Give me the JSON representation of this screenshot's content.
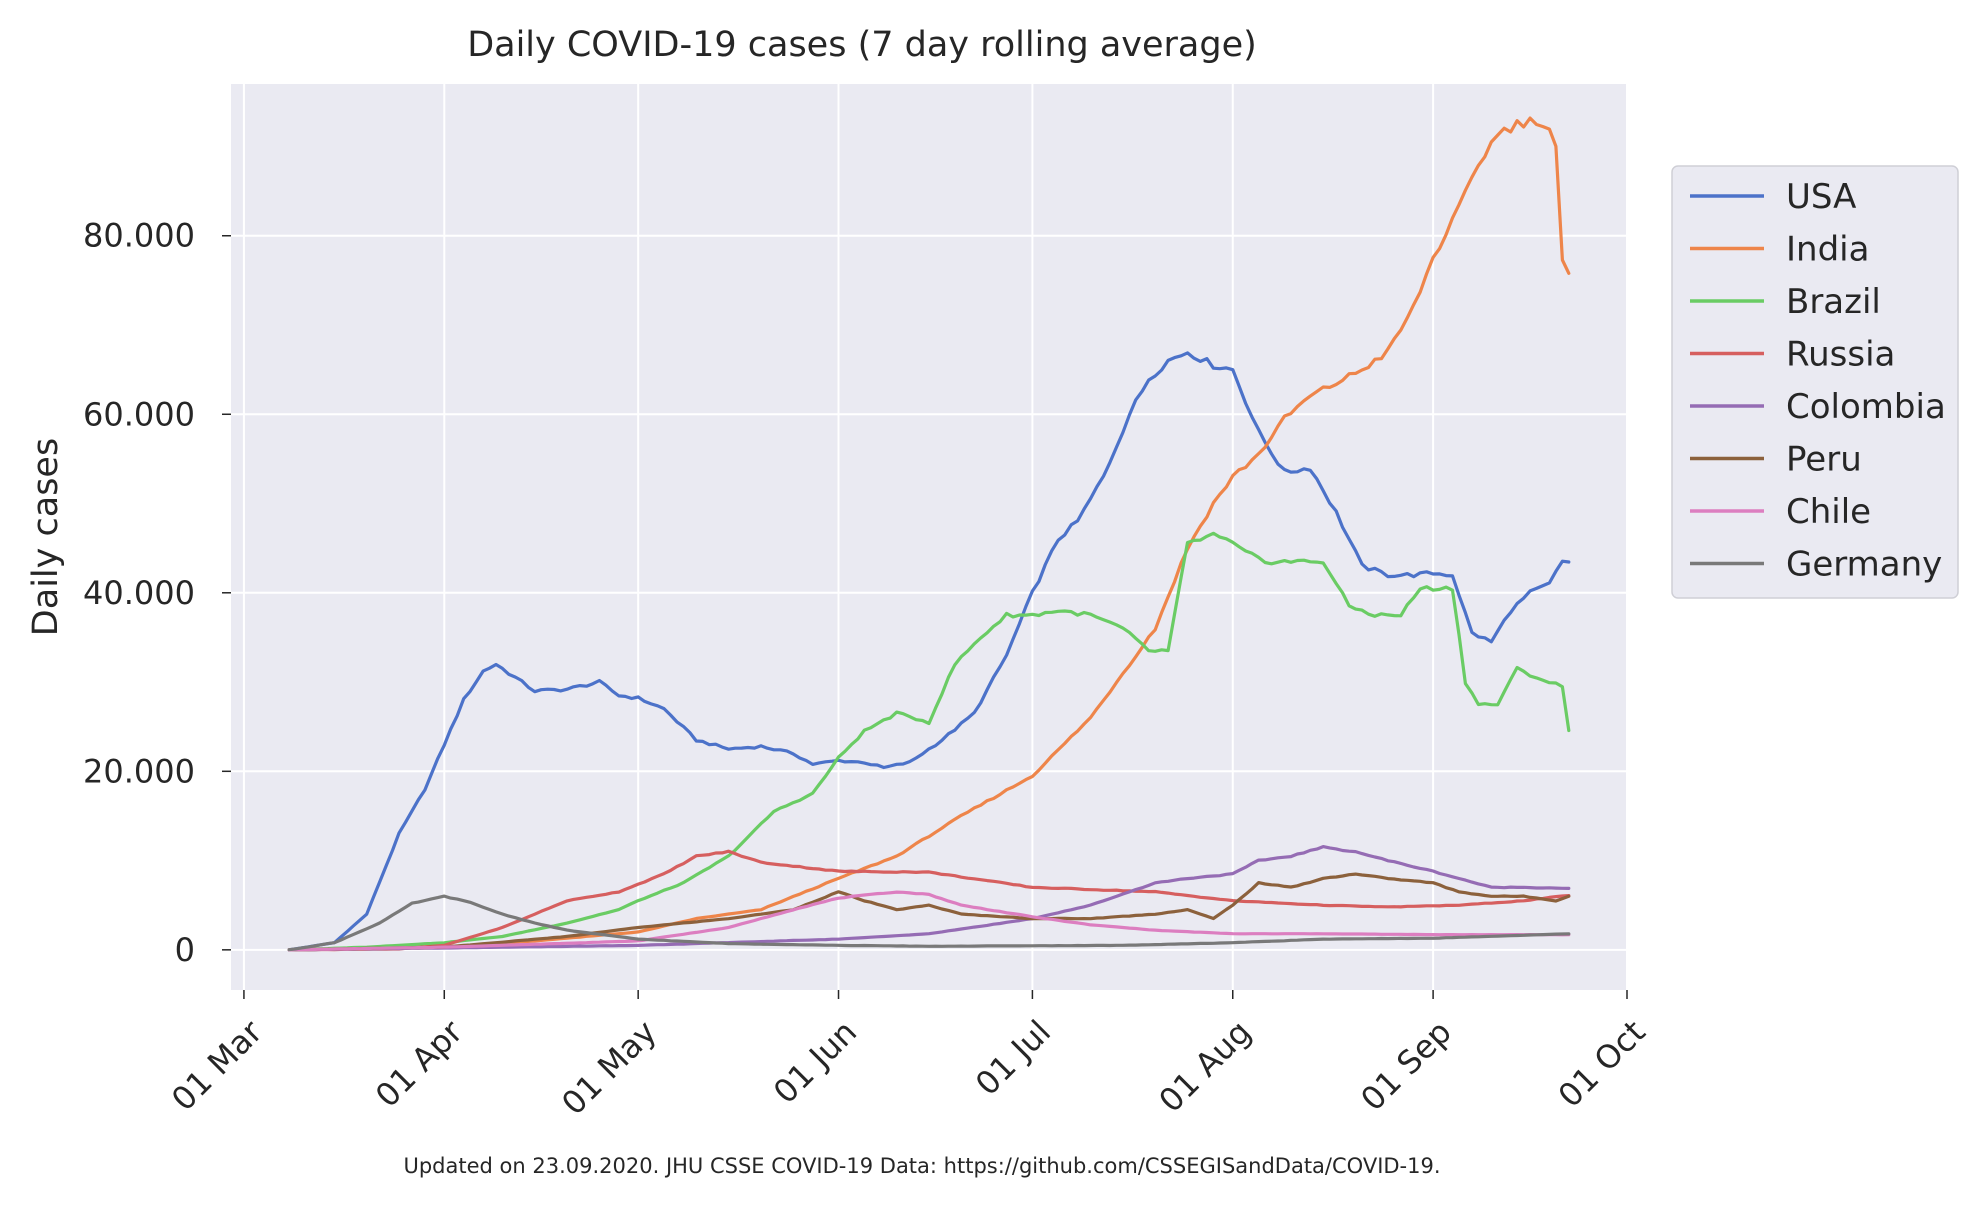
{
  "chart_data": {
    "type": "line",
    "title": "Daily COVID-19 cases (7 day rolling average)",
    "xlabel": "",
    "ylabel": "Daily cases",
    "footer": "Updated on 23.09.2020. JHU CSSE COVID-19 Data: https://github.com/CSSEGISandData/COVID-19.",
    "x_tick_labels": [
      "01 Mar",
      "01 Apr",
      "01 May",
      "01 Jun",
      "01 Jul",
      "01 Aug",
      "01 Sep",
      "01 Oct"
    ],
    "x_tick_dates": [
      "2020-03-01",
      "2020-04-01",
      "2020-05-01",
      "2020-06-01",
      "2020-07-01",
      "2020-08-01",
      "2020-09-01",
      "2020-10-01"
    ],
    "xlim": [
      "2020-02-28",
      "2020-10-01"
    ],
    "y_tick_labels": [
      "0",
      "20.000",
      "40.000",
      "60.000",
      "80.000"
    ],
    "y_ticks": [
      0,
      20000,
      40000,
      60000,
      80000
    ],
    "ylim": [
      -4500,
      97000
    ],
    "grid": true,
    "legend_position": "right-outside",
    "series": [
      {
        "name": "USA",
        "color": "#4c72c9",
        "x": [
          "2020-03-08",
          "2020-03-15",
          "2020-03-20",
          "2020-03-25",
          "2020-03-29",
          "2020-04-01",
          "2020-04-04",
          "2020-04-07",
          "2020-04-09",
          "2020-04-12",
          "2020-04-15",
          "2020-04-20",
          "2020-04-25",
          "2020-04-28",
          "2020-05-01",
          "2020-05-05",
          "2020-05-10",
          "2020-05-15",
          "2020-05-20",
          "2020-05-25",
          "2020-05-28",
          "2020-06-01",
          "2020-06-05",
          "2020-06-08",
          "2020-06-12",
          "2020-06-17",
          "2020-06-22",
          "2020-06-27",
          "2020-07-01",
          "2020-07-05",
          "2020-07-08",
          "2020-07-12",
          "2020-07-16",
          "2020-07-19",
          "2020-07-22",
          "2020-07-25",
          "2020-07-29",
          "2020-08-01",
          "2020-08-05",
          "2020-08-09",
          "2020-08-13",
          "2020-08-17",
          "2020-08-21",
          "2020-08-25",
          "2020-08-29",
          "2020-09-01",
          "2020-09-04",
          "2020-09-07",
          "2020-09-10",
          "2020-09-13",
          "2020-09-16",
          "2020-09-19",
          "2020-09-21",
          "2020-09-22"
        ],
        "values": [
          0,
          800,
          4000,
          13000,
          18000,
          23000,
          28000,
          31200,
          32000,
          30500,
          29000,
          29200,
          30000,
          28500,
          28200,
          27000,
          23500,
          22500,
          22800,
          22000,
          20800,
          21200,
          21000,
          20400,
          21000,
          23500,
          26500,
          33000,
          40000,
          46000,
          48000,
          53000,
          60000,
          64000,
          66000,
          67000,
          65500,
          65000,
          58000,
          53500,
          54000,
          49000,
          43000,
          42000,
          42000,
          42200,
          42000,
          35500,
          34500,
          38000,
          40000,
          41000,
          43500,
          43500
        ]
      },
      {
        "name": "India",
        "color": "#ee854a",
        "x": [
          "2020-03-08",
          "2020-04-01",
          "2020-04-15",
          "2020-05-01",
          "2020-05-10",
          "2020-05-20",
          "2020-06-01",
          "2020-06-10",
          "2020-06-20",
          "2020-07-01",
          "2020-07-10",
          "2020-07-20",
          "2020-07-25",
          "2020-07-29",
          "2020-08-01",
          "2020-08-05",
          "2020-08-09",
          "2020-08-13",
          "2020-08-17",
          "2020-08-21",
          "2020-08-25",
          "2020-08-29",
          "2020-09-01",
          "2020-09-05",
          "2020-09-08",
          "2020-09-11",
          "2020-09-14",
          "2020-09-17",
          "2020-09-19",
          "2020-09-20",
          "2020-09-21",
          "2020-09-22"
        ],
        "values": [
          0,
          300,
          1000,
          2000,
          3500,
          4500,
          8000,
          10500,
          15000,
          19500,
          26000,
          36000,
          45000,
          50000,
          53000,
          55500,
          59500,
          62000,
          63500,
          65000,
          67000,
          72000,
          77500,
          83000,
          88000,
          91500,
          92500,
          93000,
          92000,
          90000,
          77000,
          75500
        ]
      },
      {
        "name": "Brazil",
        "color": "#6acc64",
        "x": [
          "2020-03-08",
          "2020-03-20",
          "2020-04-01",
          "2020-04-10",
          "2020-04-20",
          "2020-04-28",
          "2020-05-01",
          "2020-05-08",
          "2020-05-15",
          "2020-05-22",
          "2020-05-28",
          "2020-06-01",
          "2020-06-05",
          "2020-06-10",
          "2020-06-15",
          "2020-06-19",
          "2020-06-23",
          "2020-06-27",
          "2020-07-01",
          "2020-07-05",
          "2020-07-10",
          "2020-07-15",
          "2020-07-19",
          "2020-07-22",
          "2020-07-25",
          "2020-07-29",
          "2020-08-01",
          "2020-08-03",
          "2020-08-06",
          "2020-08-10",
          "2020-08-15",
          "2020-08-19",
          "2020-08-23",
          "2020-08-27",
          "2020-08-30",
          "2020-09-01",
          "2020-09-04",
          "2020-09-06",
          "2020-09-08",
          "2020-09-11",
          "2020-09-14",
          "2020-09-17",
          "2020-09-21",
          "2020-09-22"
        ],
        "values": [
          0,
          300,
          800,
          1500,
          3000,
          4500,
          5500,
          7500,
          10500,
          15500,
          17500,
          21500,
          24500,
          26500,
          25500,
          32000,
          35000,
          37500,
          37500,
          38000,
          37500,
          36000,
          33500,
          33500,
          45500,
          46500,
          45500,
          44500,
          43500,
          43500,
          43500,
          38500,
          37500,
          37500,
          40500,
          40500,
          40500,
          30000,
          27500,
          27500,
          31500,
          30500,
          29500,
          24500
        ]
      },
      {
        "name": "Russia",
        "color": "#d65f5f",
        "x": [
          "2020-03-08",
          "2020-03-25",
          "2020-04-01",
          "2020-04-10",
          "2020-04-20",
          "2020-04-28",
          "2020-05-05",
          "2020-05-10",
          "2020-05-15",
          "2020-05-20",
          "2020-06-01",
          "2020-06-15",
          "2020-07-01",
          "2020-07-20",
          "2020-08-01",
          "2020-08-15",
          "2020-08-25",
          "2020-09-05",
          "2020-09-15",
          "2020-09-22"
        ],
        "values": [
          0,
          100,
          500,
          2500,
          5500,
          6500,
          8500,
          10500,
          11000,
          9800,
          8800,
          8700,
          7000,
          6500,
          5500,
          5000,
          4800,
          5000,
          5500,
          6100
        ]
      },
      {
        "name": "Colombia",
        "color": "#956cb4",
        "x": [
          "2020-03-08",
          "2020-04-01",
          "2020-05-01",
          "2020-06-01",
          "2020-06-15",
          "2020-07-01",
          "2020-07-10",
          "2020-07-20",
          "2020-07-25",
          "2020-08-01",
          "2020-08-05",
          "2020-08-10",
          "2020-08-15",
          "2020-08-20",
          "2020-08-25",
          "2020-09-01",
          "2020-09-05",
          "2020-09-10",
          "2020-09-15",
          "2020-09-22"
        ],
        "values": [
          0,
          200,
          500,
          1200,
          1800,
          3500,
          5000,
          7500,
          8000,
          8500,
          10000,
          10500,
          11500,
          11000,
          10000,
          8800,
          8000,
          7000,
          7000,
          6900
        ]
      },
      {
        "name": "Peru",
        "color": "#8c613c",
        "x": [
          "2020-03-08",
          "2020-04-01",
          "2020-04-20",
          "2020-05-01",
          "2020-05-15",
          "2020-05-25",
          "2020-06-01",
          "2020-06-05",
          "2020-06-10",
          "2020-06-15",
          "2020-06-20",
          "2020-07-01",
          "2020-07-10",
          "2020-07-20",
          "2020-07-25",
          "2020-07-29",
          "2020-08-01",
          "2020-08-05",
          "2020-08-10",
          "2020-08-15",
          "2020-08-20",
          "2020-08-25",
          "2020-09-01",
          "2020-09-05",
          "2020-09-10",
          "2020-09-15",
          "2020-09-20",
          "2020-09-22"
        ],
        "values": [
          0,
          300,
          1500,
          2500,
          3500,
          4500,
          6500,
          5500,
          4500,
          5000,
          4000,
          3500,
          3500,
          4000,
          4500,
          3500,
          5000,
          7500,
          7000,
          8000,
          8500,
          8000,
          7500,
          6500,
          6000,
          6000,
          5500,
          6000
        ]
      },
      {
        "name": "Chile",
        "color": "#dc7ec0",
        "x": [
          "2020-03-08",
          "2020-04-01",
          "2020-05-01",
          "2020-05-15",
          "2020-05-25",
          "2020-06-01",
          "2020-06-10",
          "2020-06-15",
          "2020-06-20",
          "2020-07-01",
          "2020-07-10",
          "2020-07-20",
          "2020-08-01",
          "2020-08-15",
          "2020-09-01",
          "2020-09-22"
        ],
        "values": [
          0,
          300,
          1000,
          2500,
          4500,
          5800,
          6500,
          6200,
          5000,
          3700,
          2800,
          2200,
          1800,
          1800,
          1700,
          1700
        ]
      },
      {
        "name": "Germany",
        "color": "#797979",
        "x": [
          "2020-03-08",
          "2020-03-15",
          "2020-03-22",
          "2020-03-27",
          "2020-04-01",
          "2020-04-05",
          "2020-04-10",
          "2020-04-15",
          "2020-04-20",
          "2020-05-01",
          "2020-05-15",
          "2020-06-01",
          "2020-06-15",
          "2020-07-01",
          "2020-07-15",
          "2020-08-01",
          "2020-08-15",
          "2020-09-01",
          "2020-09-22"
        ],
        "values": [
          0,
          800,
          3000,
          5200,
          6000,
          5300,
          4000,
          3000,
          2200,
          1200,
          700,
          500,
          400,
          450,
          500,
          800,
          1200,
          1300,
          1800
        ]
      }
    ]
  }
}
